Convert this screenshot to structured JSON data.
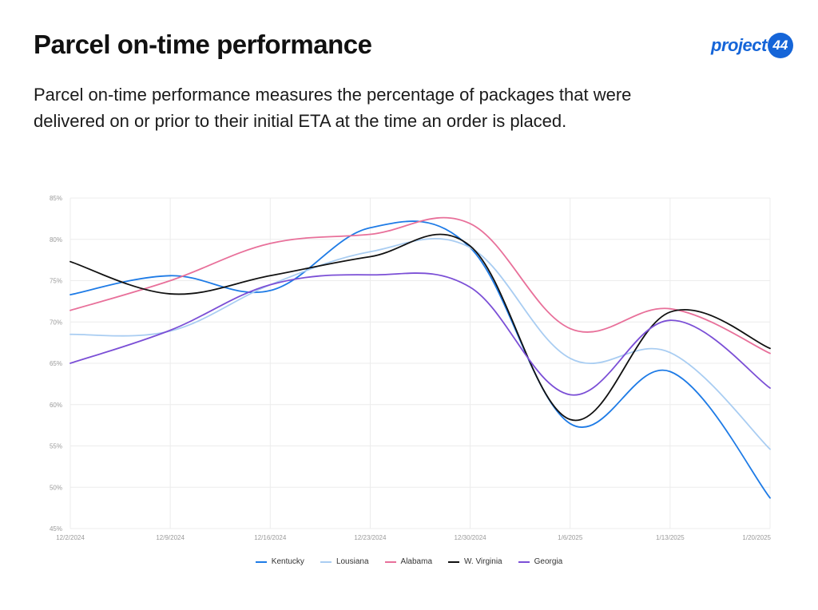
{
  "header": {
    "title": "Parcel on-time performance",
    "description": "Parcel on-time performance measures the percentage of packages that were delivered on or prior to their initial ETA at the time an order is placed."
  },
  "logo": {
    "text": "project",
    "badge": "44",
    "color": "#1565d8"
  },
  "chart_data": {
    "type": "line",
    "title": "",
    "xlabel": "",
    "ylabel": "",
    "x": [
      "12/2/2024",
      "12/9/2024",
      "12/16/2024",
      "12/23/2024",
      "12/30/2024",
      "1/6/2025",
      "1/13/2025",
      "1/20/2025"
    ],
    "y_ticks": [
      "45%",
      "50%",
      "55%",
      "60%",
      "65%",
      "70%",
      "75%",
      "80%",
      "85%"
    ],
    "ylim": [
      45,
      85
    ],
    "grid": true,
    "legend_position": "bottom",
    "series": [
      {
        "name": "Kentucky",
        "color": "#1e7be6",
        "values": [
          73.3,
          75.6,
          73.8,
          81.4,
          79.0,
          57.7,
          64.0,
          48.7
        ]
      },
      {
        "name": "Lousiana",
        "color": "#a9cdf2",
        "values": [
          68.5,
          68.9,
          74.5,
          78.5,
          79.0,
          65.6,
          66.3,
          54.6
        ]
      },
      {
        "name": "Alabama",
        "color": "#e8709a",
        "values": [
          71.4,
          75.0,
          79.5,
          80.6,
          81.9,
          69.2,
          71.6,
          66.2
        ]
      },
      {
        "name": "W. Virginia",
        "color": "#111111",
        "values": [
          77.3,
          73.4,
          75.6,
          77.9,
          79.2,
          58.2,
          71.2,
          66.8
        ]
      },
      {
        "name": "Georgia",
        "color": "#7b4fd6",
        "values": [
          65.0,
          69.0,
          74.5,
          75.7,
          74.2,
          61.2,
          70.2,
          62.0
        ]
      }
    ]
  }
}
